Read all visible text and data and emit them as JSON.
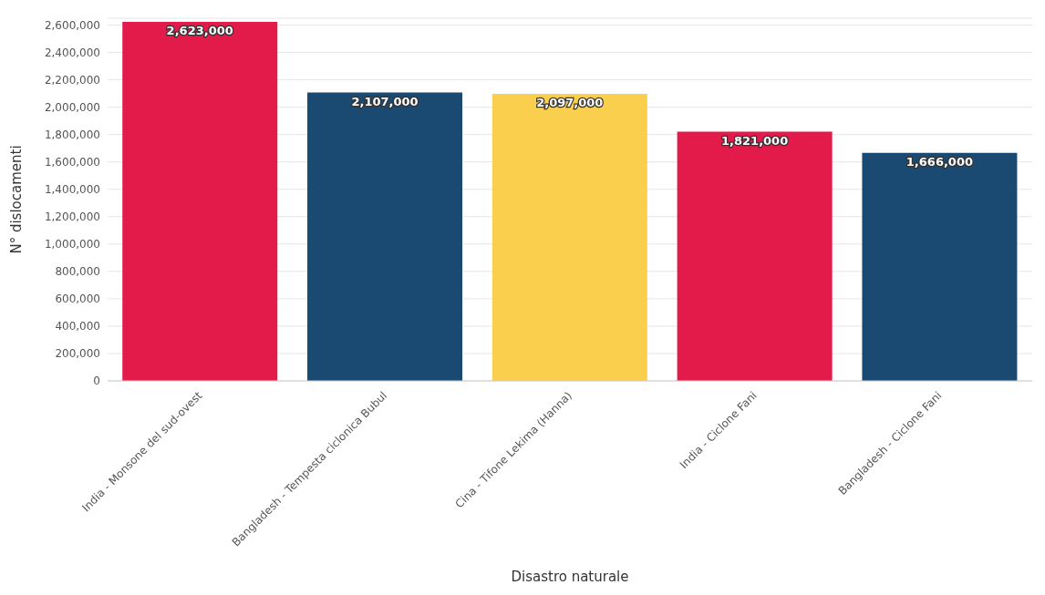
{
  "chart_data": {
    "type": "bar",
    "xlabel": "Disastro naturale",
    "ylabel": "N° dislocamenti",
    "categories": [
      "India - Monsone del sud-ovest",
      "Bangladesh - Tempesta ciclonica Bubul",
      "Cina - Tifone Lekima (Hanna)",
      "India - Ciclone Fani",
      "Bangladesh - Ciclone Fani"
    ],
    "values": [
      2623000,
      2107000,
      2097000,
      1821000,
      1666000
    ],
    "value_labels": [
      "2,623,000",
      "2,107,000",
      "2,097,000",
      "1,821,000",
      "1,666,000"
    ],
    "colors": [
      "#e31b4b",
      "#1a4a72",
      "#fbcf4e",
      "#e31b4b",
      "#1a4a72"
    ],
    "ylim": [
      0,
      2650000
    ],
    "yticks": [
      0,
      {
        "value": 200000,
        "label": "200,000"
      },
      {
        "value": 400000,
        "label": "400,000"
      },
      {
        "value": 600000,
        "label": "600,000"
      },
      {
        "value": 800000,
        "label": "800,000"
      },
      {
        "value": 1000000,
        "label": "1,000,000"
      },
      {
        "value": 1200000,
        "label": "1,200,000"
      },
      {
        "value": 1400000,
        "label": "1,400,000"
      },
      {
        "value": 1600000,
        "label": "1,600,000"
      },
      {
        "value": 1800000,
        "label": "1,800,000"
      },
      {
        "value": 2000000,
        "label": "2,000,000"
      },
      {
        "value": 2200000,
        "label": "2,200,000"
      },
      {
        "value": 2400000,
        "label": "2,400,000"
      },
      {
        "value": 2600000,
        "label": "2,600,000"
      }
    ],
    "grid": "y"
  }
}
